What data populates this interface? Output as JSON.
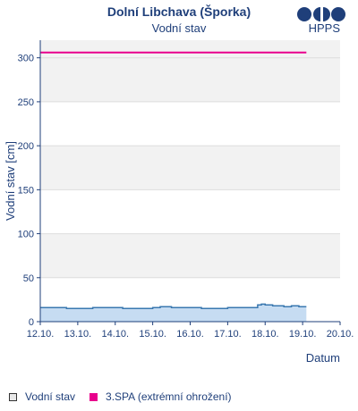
{
  "header": {
    "title": "Dolní Libchava (Šporka)",
    "subtitle": "Vodní stav",
    "logo_text": "HPPS"
  },
  "colors": {
    "axis": "#1f3f7a",
    "text": "#1f3f7a",
    "band": "#f2f2f2",
    "series_fill": "#c6dcf2",
    "series_line": "#3a78b0",
    "spa3": "#e8008c"
  },
  "chart_data": {
    "type": "area",
    "title": "Dolní Libchava (Šporka)",
    "subtitle": "Vodní stav",
    "ylabel": "Vodní stav [cm]",
    "xlabel": "Datum",
    "ylim": [
      0,
      320
    ],
    "yticks": [
      0,
      50,
      100,
      150,
      200,
      250,
      300
    ],
    "x_tick_labels": [
      "12.10.",
      "13.10.",
      "14.10.",
      "15.10.",
      "16.10.",
      "17.10.",
      "18.10.",
      "19.10.",
      "20.10."
    ],
    "grid": "alternating horizontal bands",
    "series": [
      {
        "name": "Vodní stav",
        "type": "area",
        "x": [
          0,
          0.7,
          0.7,
          1.4,
          1.4,
          2.2,
          2.2,
          3.0,
          3.0,
          3.2,
          3.2,
          3.5,
          3.5,
          4.3,
          4.3,
          5.0,
          5.0,
          5.8,
          5.8,
          5.9,
          5.9,
          6.0,
          6.0,
          6.2,
          6.2,
          6.5,
          6.5,
          6.7,
          6.7,
          6.9,
          6.9,
          7.1
        ],
        "y": [
          16,
          16,
          15,
          15,
          16,
          16,
          15,
          15,
          16,
          16,
          17,
          17,
          16,
          16,
          15,
          15,
          16,
          16,
          19,
          19,
          20,
          20,
          19,
          19,
          18,
          18,
          17,
          17,
          18,
          18,
          17,
          17
        ]
      },
      {
        "name": "3.SPA (extrémní ohrožení)",
        "type": "line",
        "x": [
          0,
          7.1
        ],
        "y": [
          306,
          306
        ]
      }
    ],
    "legend": [
      {
        "label": "Vodní stav",
        "swatch": "series_fill"
      },
      {
        "label": "3.SPA (extrémní ohrožení)",
        "swatch": "spa3"
      }
    ]
  }
}
